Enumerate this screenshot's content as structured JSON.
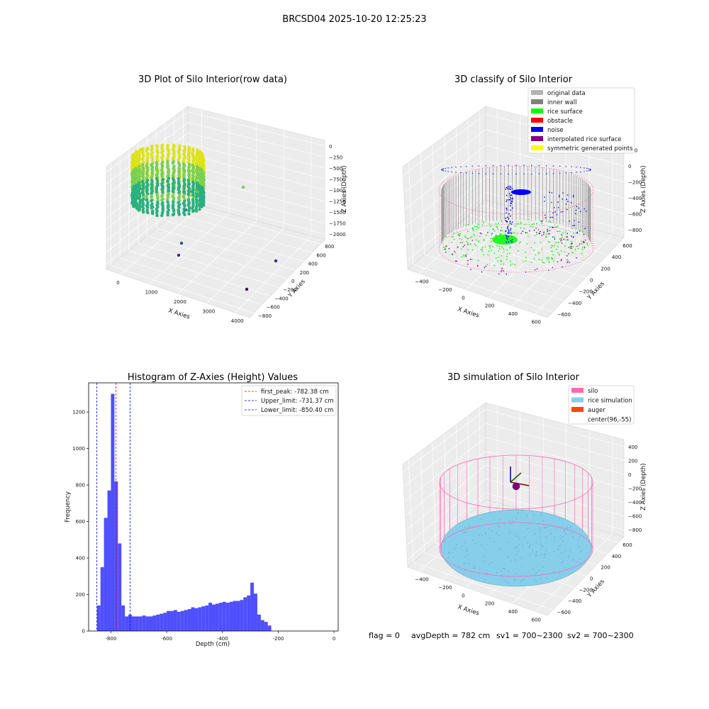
{
  "suptitle": "BRCSD04 2025-10-20 12:25:23",
  "footer": {
    "flag": "flag = 0",
    "avg": "avgDepth = 782 cm",
    "sv1": "sv1 = 700~2300",
    "sv2": "sv2 = 700~2300"
  },
  "colors": {
    "original": "#b3b3b3",
    "inner_wall": "#808080",
    "rice_surface": "#00ff00",
    "obstacle": "#ff0000",
    "noise": "#0000ff",
    "interpolated": "#800080",
    "symmetric": "#ffff00",
    "silo": "#ff69b4",
    "rice_sim": "#87ceeb",
    "auger": "#ff4500",
    "hist_bar": "#4f4fff"
  },
  "chart_data": [
    {
      "type": "scatter",
      "title": "3D Plot of Silo Interior(row data)",
      "xlabel": "X Axies",
      "ylabel": "Y Axies",
      "zlabel": "Z Axies (Depth)",
      "x_ticks": [
        "0",
        "1000",
        "2000",
        "3000",
        "4000"
      ],
      "y_ticks": [
        "−800",
        "−600",
        "−400",
        "−200",
        "0",
        "200",
        "400",
        "600",
        "800"
      ],
      "z_ticks": [
        "0",
        "−250",
        "−500",
        "−750",
        "−1000",
        "−1250",
        "−1500",
        "−1750",
        "−2000"
      ]
    },
    {
      "type": "scatter",
      "title": "3D classify of Silo Interior",
      "xlabel": "X Axies",
      "ylabel": "Y Axies",
      "zlabel": "Z Axies (Depth)",
      "x_ticks": [
        "−400",
        "−200",
        "0",
        "200",
        "400",
        "600"
      ],
      "y_ticks": [
        "−600",
        "−400",
        "−200",
        "0",
        "200",
        "400",
        "600"
      ],
      "z_ticks": [
        "200",
        "0",
        "−200",
        "−400",
        "−600",
        "−800"
      ],
      "legend": [
        {
          "label": "original data",
          "color": "#b3b3b3"
        },
        {
          "label": "inner wall",
          "color": "#808080"
        },
        {
          "label": "rice surface",
          "color": "#00ff00"
        },
        {
          "label": "obstacle",
          "color": "#ff0000"
        },
        {
          "label": "noise",
          "color": "#0000ff"
        },
        {
          "label": "interpolated rice surface",
          "color": "#800080"
        },
        {
          "label": "symmetric generated points",
          "color": "#ffff00"
        }
      ]
    },
    {
      "type": "bar",
      "title": "Histogram of Z-Axies (Height) Values",
      "xlabel": "Depth (cm)",
      "ylabel": "Frequency",
      "xlim": [
        -880,
        15
      ],
      "ylim": [
        0,
        1360
      ],
      "bin_start": -850,
      "bin_width": 12.5,
      "values": [
        140,
        350,
        620,
        770,
        1300,
        820,
        480,
        140,
        80,
        90,
        80,
        80,
        80,
        85,
        80,
        80,
        85,
        90,
        95,
        100,
        110,
        110,
        115,
        105,
        110,
        115,
        120,
        130,
        125,
        130,
        135,
        140,
        155,
        145,
        150,
        155,
        160,
        155,
        160,
        165,
        165,
        170,
        185,
        195,
        265,
        205,
        90,
        60,
        50,
        30
      ],
      "x_ticks": [
        -800,
        -600,
        -400,
        -200,
        0
      ],
      "y_ticks": [
        0,
        200,
        400,
        600,
        800,
        1000,
        1200
      ],
      "vlines": [
        {
          "label": "first_peak: -782.38 cm",
          "x": -782.38,
          "color": "#ff0000"
        },
        {
          "label": "Upper_limit: -731.37 cm",
          "x": -731.37,
          "color": "#0000ff"
        },
        {
          "label": "Lower_limit: -850.40 cm",
          "x": -850.4,
          "color": "#0000ff"
        }
      ]
    },
    {
      "type": "scatter",
      "title": "3D simulation of Silo Interior",
      "xlabel": "X Axies",
      "ylabel": "Y Axies",
      "zlabel": "Z Axies (Depth)",
      "x_ticks": [
        "−400",
        "−200",
        "0",
        "200",
        "400",
        "600"
      ],
      "y_ticks": [
        "−600",
        "−400",
        "−200",
        "0",
        "200",
        "400",
        "600"
      ],
      "z_ticks": [
        "400",
        "200",
        "0",
        "−200",
        "−400",
        "−600",
        "−800"
      ],
      "legend": [
        {
          "label": "silo",
          "color": "#ff69b4"
        },
        {
          "label": "rice simulation",
          "color": "#87ceeb"
        },
        {
          "label": "auger",
          "color": "#ff4500"
        },
        {
          "label": "center(96,-55)",
          "color": "#ffffff"
        }
      ]
    }
  ]
}
